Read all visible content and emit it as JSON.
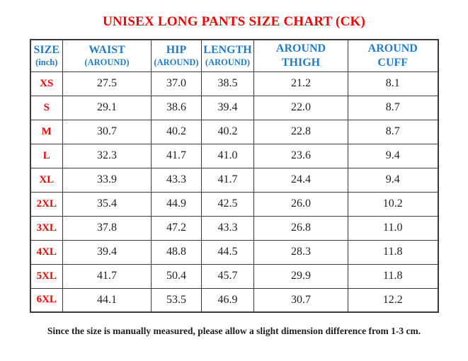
{
  "page": {
    "title": "UNISEX LONG PANTS SIZE CHART (CK)",
    "footnote": "Since the size is manually measured, please allow a slight dimension difference from 1-3 cm."
  },
  "colors": {
    "title": "#f40000",
    "header": "#1f7bc8",
    "size_label": "#f40000",
    "value_text": "#1f1f1f",
    "border": "#3a3a3a",
    "background": "#ffffff"
  },
  "table": {
    "headers": [
      {
        "line1": "SIZE",
        "line2": "(inch)"
      },
      {
        "line1": "WAIST",
        "line2": "(AROUND)"
      },
      {
        "line1": "HIP",
        "line2": "(AROUND)"
      },
      {
        "line1": "LENGTH",
        "line2": "(AROUND)"
      },
      {
        "line1": "AROUND",
        "line2": "THIGH"
      },
      {
        "line1": "AROUND",
        "line2": "CUFF"
      }
    ],
    "rows": [
      {
        "size": "XS",
        "values": [
          "27.5",
          "37.0",
          "38.5",
          "21.2",
          "8.1"
        ]
      },
      {
        "size": "S",
        "values": [
          "29.1",
          "38.6",
          "39.4",
          "22.0",
          "8.7"
        ]
      },
      {
        "size": "M",
        "values": [
          "30.7",
          "40.2",
          "40.2",
          "22.8",
          "8.7"
        ]
      },
      {
        "size": "L",
        "values": [
          "32.3",
          "41.7",
          "41.0",
          "23.6",
          "9.4"
        ]
      },
      {
        "size": "XL",
        "values": [
          "33.9",
          "43.3",
          "41.7",
          "24.4",
          "9.4"
        ]
      },
      {
        "size": "2XL",
        "values": [
          "35.4",
          "44.9",
          "42.5",
          "26.0",
          "10.2"
        ]
      },
      {
        "size": "3XL",
        "values": [
          "37.8",
          "47.2",
          "43.3",
          "26.8",
          "11.0"
        ]
      },
      {
        "size": "4XL",
        "values": [
          "39.4",
          "48.8",
          "44.5",
          "28.3",
          "11.8"
        ]
      },
      {
        "size": "5XL",
        "values": [
          "41.7",
          "50.4",
          "45.7",
          "29.9",
          "11.8"
        ]
      },
      {
        "size": "6XL",
        "values": [
          "44.1",
          "53.5",
          "46.9",
          "30.7",
          "12.2"
        ]
      }
    ]
  }
}
